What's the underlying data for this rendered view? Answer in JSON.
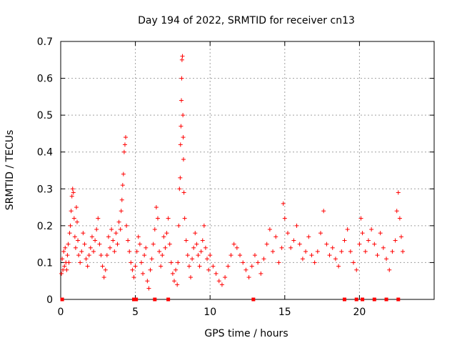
{
  "chart_data": {
    "type": "scatter",
    "title": "Day 194 of 2022, SRMTID for receiver cn13",
    "xlabel": "GPS time / hours",
    "ylabel": "SRMTID / TECUs",
    "xlim": [
      0,
      25
    ],
    "ylim": [
      0,
      0.7
    ],
    "x_ticks": [
      "0",
      "5",
      "10",
      "15",
      "20"
    ],
    "y_ticks": [
      "0",
      "0.1",
      "0.2",
      "0.3",
      "0.4",
      "0.5",
      "0.6",
      "0.7"
    ],
    "grid": true,
    "marker": "+",
    "color": "#ff0000",
    "series": [
      {
        "name": "SRMTID",
        "points": [
          [
            0.05,
            0.07
          ],
          [
            0.1,
            0.11
          ],
          [
            0.15,
            0.08
          ],
          [
            0.2,
            0.13
          ],
          [
            0.25,
            0.09
          ],
          [
            0.3,
            0.14
          ],
          [
            0.35,
            0.1
          ],
          [
            0.4,
            0.08
          ],
          [
            0.45,
            0.12
          ],
          [
            0.5,
            0.15
          ],
          [
            0.55,
            0.1
          ],
          [
            0.6,
            0.18
          ],
          [
            0.65,
            0.2
          ],
          [
            0.7,
            0.24
          ],
          [
            0.75,
            0.28
          ],
          [
            0.8,
            0.3
          ],
          [
            0.85,
            0.29
          ],
          [
            0.9,
            0.22
          ],
          [
            0.95,
            0.17
          ],
          [
            1.0,
            0.14
          ],
          [
            1.05,
            0.25
          ],
          [
            1.1,
            0.21
          ],
          [
            1.15,
            0.16
          ],
          [
            1.2,
            0.12
          ],
          [
            1.3,
            0.1
          ],
          [
            1.4,
            0.13
          ],
          [
            1.5,
            0.18
          ],
          [
            1.6,
            0.15
          ],
          [
            1.7,
            0.11
          ],
          [
            1.8,
            0.09
          ],
          [
            1.9,
            0.12
          ],
          [
            2.0,
            0.14
          ],
          [
            2.1,
            0.17
          ],
          [
            2.2,
            0.13
          ],
          [
            2.3,
            0.16
          ],
          [
            2.4,
            0.19
          ],
          [
            2.5,
            0.22
          ],
          [
            2.6,
            0.15
          ],
          [
            2.7,
            0.12
          ],
          [
            2.8,
            0.09
          ],
          [
            2.9,
            0.06
          ],
          [
            3.0,
            0.08
          ],
          [
            3.1,
            0.12
          ],
          [
            3.2,
            0.17
          ],
          [
            3.3,
            0.14
          ],
          [
            3.4,
            0.19
          ],
          [
            3.5,
            0.16
          ],
          [
            3.6,
            0.13
          ],
          [
            3.7,
            0.18
          ],
          [
            3.8,
            0.15
          ],
          [
            3.9,
            0.21
          ],
          [
            4.0,
            0.19
          ],
          [
            4.05,
            0.24
          ],
          [
            4.1,
            0.27
          ],
          [
            4.15,
            0.31
          ],
          [
            4.2,
            0.34
          ],
          [
            4.25,
            0.4
          ],
          [
            4.3,
            0.42
          ],
          [
            4.35,
            0.44
          ],
          [
            4.4,
            0.2
          ],
          [
            4.5,
            0.16
          ],
          [
            4.6,
            0.13
          ],
          [
            4.7,
            0.1
          ],
          [
            4.8,
            0.08
          ],
          [
            4.9,
            0.06
          ],
          [
            5.0,
            0.09
          ],
          [
            5.1,
            0.13
          ],
          [
            5.2,
            0.17
          ],
          [
            5.3,
            0.15
          ],
          [
            5.4,
            0.1
          ],
          [
            5.5,
            0.07
          ],
          [
            5.6,
            0.12
          ],
          [
            5.7,
            0.14
          ],
          [
            5.8,
            0.05
          ],
          [
            5.9,
            0.03
          ],
          [
            6.0,
            0.08
          ],
          [
            6.1,
            0.11
          ],
          [
            6.2,
            0.15
          ],
          [
            6.3,
            0.19
          ],
          [
            6.4,
            0.25
          ],
          [
            6.5,
            0.22
          ],
          [
            6.6,
            0.13
          ],
          [
            6.7,
            0.09
          ],
          [
            6.8,
            0.12
          ],
          [
            6.9,
            0.17
          ],
          [
            7.0,
            0.14
          ],
          [
            7.1,
            0.18
          ],
          [
            7.2,
            0.22
          ],
          [
            7.3,
            0.15
          ],
          [
            7.4,
            0.1
          ],
          [
            7.5,
            0.07
          ],
          [
            7.6,
            0.05
          ],
          [
            7.7,
            0.08
          ],
          [
            7.8,
            0.04
          ],
          [
            7.85,
            0.1
          ],
          [
            7.9,
            0.2
          ],
          [
            7.95,
            0.3
          ],
          [
            8.0,
            0.33
          ],
          [
            8.02,
            0.42
          ],
          [
            8.05,
            0.47
          ],
          [
            8.08,
            0.54
          ],
          [
            8.1,
            0.6
          ],
          [
            8.12,
            0.65
          ],
          [
            8.15,
            0.66
          ],
          [
            8.18,
            0.5
          ],
          [
            8.2,
            0.44
          ],
          [
            8.22,
            0.38
          ],
          [
            8.25,
            0.29
          ],
          [
            8.3,
            0.22
          ],
          [
            8.4,
            0.16
          ],
          [
            8.5,
            0.12
          ],
          [
            8.6,
            0.09
          ],
          [
            8.7,
            0.06
          ],
          [
            8.8,
            0.11
          ],
          [
            8.9,
            0.14
          ],
          [
            9.0,
            0.18
          ],
          [
            9.1,
            0.15
          ],
          [
            9.2,
            0.12
          ],
          [
            9.3,
            0.09
          ],
          [
            9.4,
            0.13
          ],
          [
            9.5,
            0.16
          ],
          [
            9.6,
            0.2
          ],
          [
            9.7,
            0.14
          ],
          [
            9.8,
            0.11
          ],
          [
            9.9,
            0.08
          ],
          [
            10.0,
            0.12
          ],
          [
            10.2,
            0.09
          ],
          [
            10.4,
            0.07
          ],
          [
            10.6,
            0.05
          ],
          [
            10.8,
            0.04
          ],
          [
            11.0,
            0.06
          ],
          [
            11.2,
            0.09
          ],
          [
            11.4,
            0.12
          ],
          [
            11.6,
            0.15
          ],
          [
            11.8,
            0.14
          ],
          [
            12.0,
            0.12
          ],
          [
            12.2,
            0.1
          ],
          [
            12.4,
            0.08
          ],
          [
            12.6,
            0.06
          ],
          [
            12.8,
            0.09
          ],
          [
            13.0,
            0.12
          ],
          [
            13.2,
            0.1
          ],
          [
            13.4,
            0.07
          ],
          [
            13.6,
            0.11
          ],
          [
            13.8,
            0.15
          ],
          [
            14.0,
            0.19
          ],
          [
            14.2,
            0.13
          ],
          [
            14.4,
            0.17
          ],
          [
            14.6,
            0.1
          ],
          [
            14.8,
            0.14
          ],
          [
            14.9,
            0.26
          ],
          [
            15.0,
            0.22
          ],
          [
            15.2,
            0.18
          ],
          [
            15.4,
            0.14
          ],
          [
            15.6,
            0.16
          ],
          [
            15.8,
            0.2
          ],
          [
            16.0,
            0.15
          ],
          [
            16.2,
            0.11
          ],
          [
            16.4,
            0.13
          ],
          [
            16.6,
            0.17
          ],
          [
            16.8,
            0.12
          ],
          [
            17.0,
            0.1
          ],
          [
            17.2,
            0.13
          ],
          [
            17.4,
            0.18
          ],
          [
            17.6,
            0.24
          ],
          [
            17.8,
            0.15
          ],
          [
            18.0,
            0.12
          ],
          [
            18.2,
            0.14
          ],
          [
            18.4,
            0.11
          ],
          [
            18.6,
            0.09
          ],
          [
            18.8,
            0.13
          ],
          [
            19.0,
            0.16
          ],
          [
            19.2,
            0.19
          ],
          [
            19.4,
            0.13
          ],
          [
            19.6,
            0.1
          ],
          [
            19.8,
            0.08
          ],
          [
            20.0,
            0.15
          ],
          [
            20.1,
            0.22
          ],
          [
            20.2,
            0.18
          ],
          [
            20.4,
            0.13
          ],
          [
            20.6,
            0.16
          ],
          [
            20.8,
            0.19
          ],
          [
            21.0,
            0.15
          ],
          [
            21.2,
            0.12
          ],
          [
            21.4,
            0.18
          ],
          [
            21.6,
            0.14
          ],
          [
            21.8,
            0.11
          ],
          [
            22.0,
            0.08
          ],
          [
            22.2,
            0.13
          ],
          [
            22.4,
            0.16
          ],
          [
            22.5,
            0.24
          ],
          [
            22.6,
            0.29
          ],
          [
            22.7,
            0.22
          ],
          [
            22.8,
            0.17
          ],
          [
            22.9,
            0.13
          ]
        ]
      }
    ],
    "zero_markers_x": [
      0.1,
      4.9,
      5.05,
      6.3,
      7.2,
      12.9,
      19.0,
      19.8,
      20.2,
      21.0,
      21.8,
      22.6
    ]
  }
}
